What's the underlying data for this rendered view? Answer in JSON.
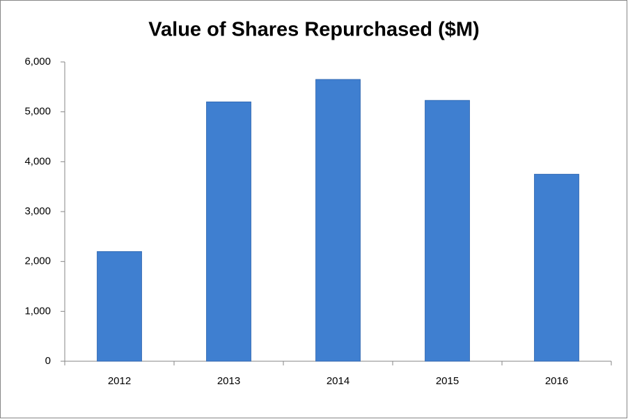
{
  "chart_data": {
    "type": "bar",
    "title": "Value of Shares Repurchased ($M)",
    "categories": [
      "2012",
      "2013",
      "2014",
      "2015",
      "2016"
    ],
    "values": [
      2200,
      5200,
      5650,
      5230,
      3750
    ],
    "color": "#3f7fd0",
    "ylim": [
      0,
      6000
    ],
    "yticks": [
      0,
      {
        "value": 1000,
        "label": "1,000"
      },
      {
        "value": 2000,
        "label": "2,000"
      },
      {
        "value": 3000,
        "label": "3,000"
      },
      {
        "value": 4000,
        "label": "4,000"
      },
      {
        "value": 5000,
        "label": "5,000"
      },
      {
        "value": 6000,
        "label": "6,000"
      }
    ],
    "grid": false
  }
}
